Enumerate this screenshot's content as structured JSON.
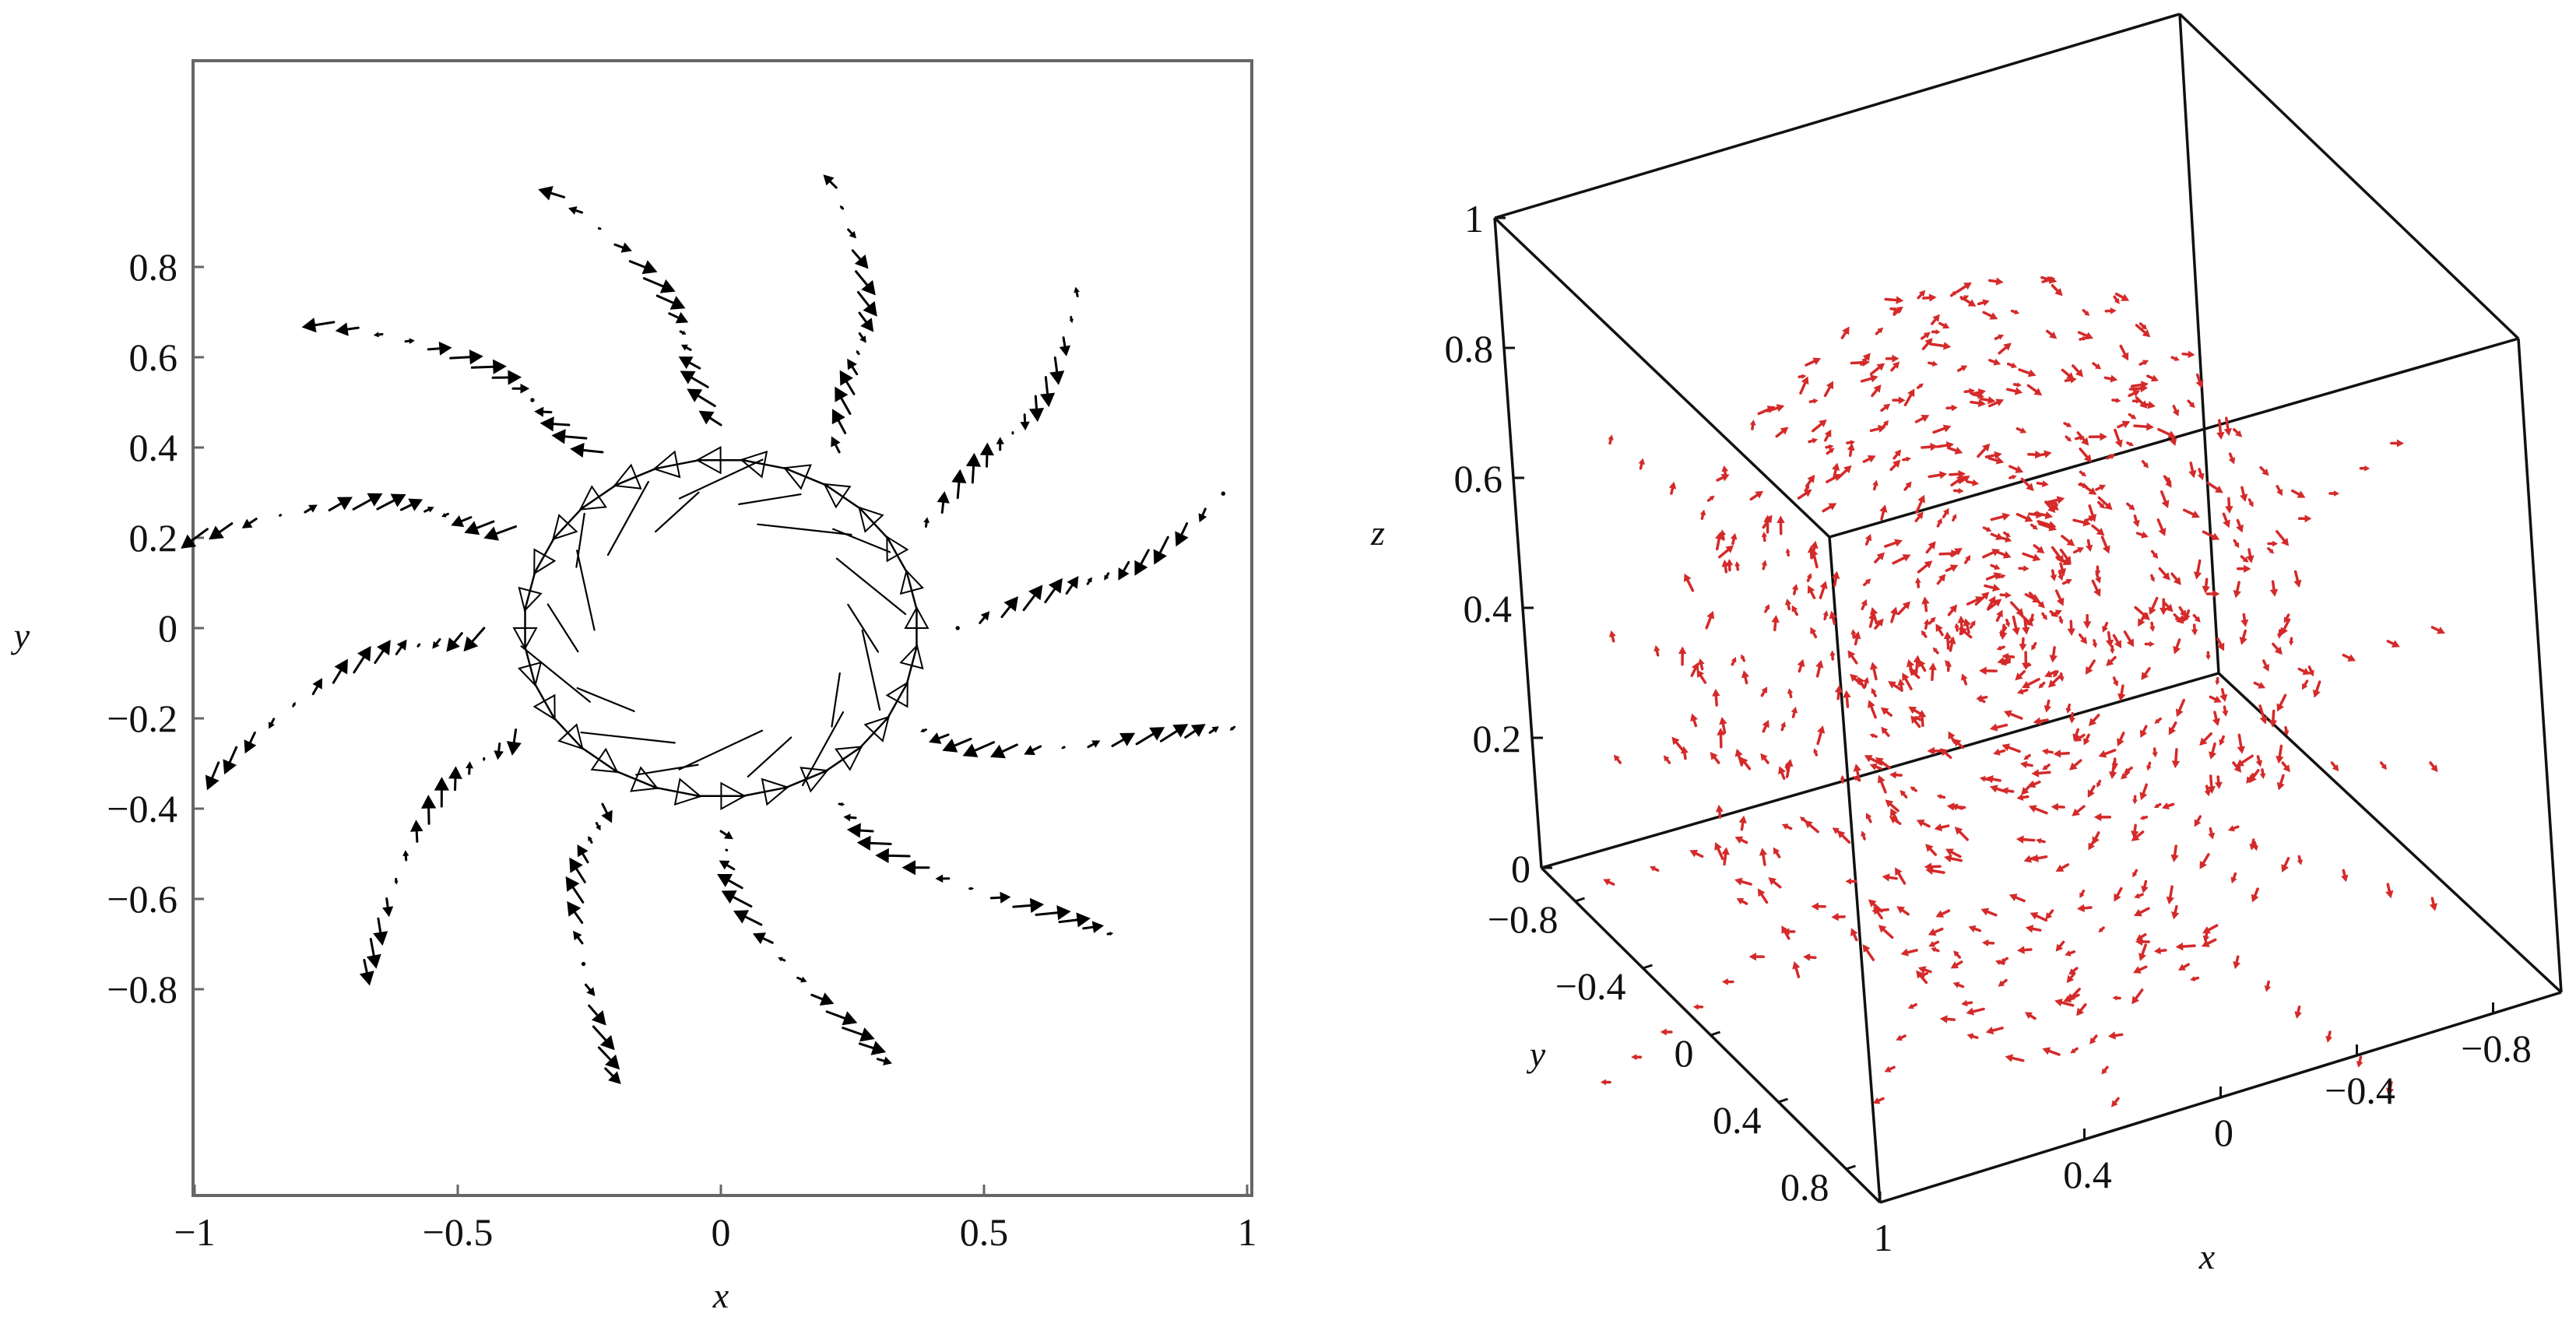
{
  "chart_data": [
    {
      "type": "vector_field_2d",
      "xlabel": "x",
      "ylabel": "y",
      "xlim": [
        -1,
        1
      ],
      "ylim": [
        -1,
        1
      ],
      "x_ticks": [
        "−1",
        "−0.5",
        "0",
        "0.5",
        "1"
      ],
      "x_tick_values": [
        -1,
        -0.5,
        0,
        0.5,
        1
      ],
      "y_ticks": [
        "0.8",
        "0.6",
        "0.4",
        "0.2",
        "0",
        "−0.2",
        "−0.4",
        "−0.6",
        "−0.8"
      ],
      "y_tick_values": [
        0.8,
        0.6,
        0.4,
        0.2,
        0,
        -0.2,
        -0.4,
        -0.6,
        -0.8
      ],
      "arrow_color": "#000000",
      "grid": false,
      "field": {
        "ring_radius": 0.4,
        "spoke_count": 12,
        "spoke_radius_range": [
          0.45,
          1.0
        ],
        "inner_rotation": "counter-clockwise"
      }
    },
    {
      "type": "vector_field_3d",
      "xlabel": "x",
      "ylabel": "y",
      "zlabel": "z",
      "x_ticks": [
        "1",
        "0.4",
        "0",
        "−0.4",
        "−0.8"
      ],
      "x_tick_values": [
        1,
        0.4,
        0,
        -0.4,
        -0.8
      ],
      "y_ticks": [
        "−0.8",
        "−0.4",
        "0",
        "0.4",
        "0.8"
      ],
      "y_tick_values": [
        -0.8,
        -0.4,
        0,
        0.4,
        0.8
      ],
      "z_ticks": [
        "1",
        "0.8",
        "0.6",
        "0.4",
        "0.2",
        "0"
      ],
      "z_tick_values": [
        1,
        0.8,
        0.6,
        0.4,
        0.2,
        0
      ],
      "arrow_color": "#d42a2a",
      "box": true
    }
  ]
}
